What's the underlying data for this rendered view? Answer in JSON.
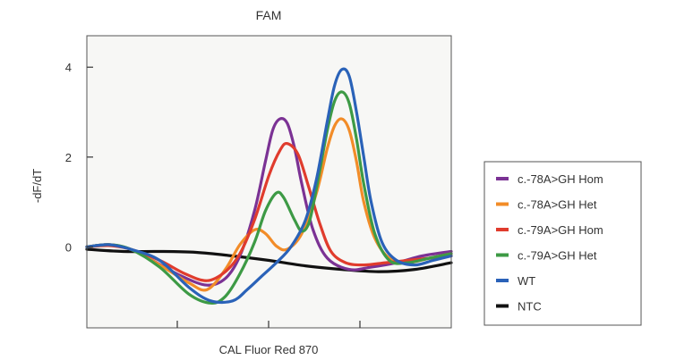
{
  "chart_data": {
    "type": "line",
    "title": "FAM",
    "xlabel": "CAL Fluor Red 870",
    "ylabel": "-dF/dT",
    "xlim": [
      0,
      100
    ],
    "ylim": [
      -1.8,
      4.7
    ],
    "y_ticks": [
      0,
      2,
      4
    ],
    "y_tick_labels": [
      "0",
      "2",
      "4"
    ],
    "grid": false,
    "legend_position": "right",
    "series": [
      {
        "name": "c.-78A>GH Hom",
        "color": "#7b3294",
        "points": [
          [
            0,
            0
          ],
          [
            6,
            0.05
          ],
          [
            12,
            -0.05
          ],
          [
            18,
            -0.3
          ],
          [
            26,
            -0.65
          ],
          [
            33,
            -0.85
          ],
          [
            38,
            -0.7
          ],
          [
            42,
            -0.2
          ],
          [
            46,
            0.8
          ],
          [
            49,
            1.9
          ],
          [
            51,
            2.6
          ],
          [
            53,
            2.85
          ],
          [
            55,
            2.75
          ],
          [
            57,
            2.2
          ],
          [
            59,
            1.4
          ],
          [
            62,
            0.4
          ],
          [
            66,
            -0.25
          ],
          [
            72,
            -0.5
          ],
          [
            78,
            -0.45
          ],
          [
            85,
            -0.35
          ],
          [
            92,
            -0.2
          ],
          [
            100,
            -0.1
          ]
        ]
      },
      {
        "name": "c.-78A>GH Het",
        "color": "#f28c28",
        "points": [
          [
            0,
            0
          ],
          [
            6,
            0.05
          ],
          [
            12,
            -0.05
          ],
          [
            20,
            -0.4
          ],
          [
            28,
            -0.8
          ],
          [
            33,
            -0.95
          ],
          [
            38,
            -0.5
          ],
          [
            42,
            0.05
          ],
          [
            46,
            0.38
          ],
          [
            49,
            0.3
          ],
          [
            52,
            0.02
          ],
          [
            55,
            -0.05
          ],
          [
            59,
            0.3
          ],
          [
            63,
            1.2
          ],
          [
            66,
            2.2
          ],
          [
            68,
            2.7
          ],
          [
            70,
            2.85
          ],
          [
            72,
            2.6
          ],
          [
            74,
            1.9
          ],
          [
            76,
            1.0
          ],
          [
            79,
            0.2
          ],
          [
            83,
            -0.25
          ],
          [
            88,
            -0.35
          ],
          [
            94,
            -0.25
          ],
          [
            100,
            -0.15
          ]
        ]
      },
      {
        "name": "c.-79A>GH Hom",
        "color": "#e03c2d",
        "points": [
          [
            0,
            0
          ],
          [
            6,
            0.03
          ],
          [
            12,
            -0.05
          ],
          [
            20,
            -0.3
          ],
          [
            27,
            -0.6
          ],
          [
            33,
            -0.75
          ],
          [
            38,
            -0.55
          ],
          [
            42,
            -0.15
          ],
          [
            46,
            0.6
          ],
          [
            50,
            1.6
          ],
          [
            53,
            2.15
          ],
          [
            55,
            2.3
          ],
          [
            58,
            2.05
          ],
          [
            61,
            1.3
          ],
          [
            64,
            0.5
          ],
          [
            67,
            -0.1
          ],
          [
            71,
            -0.35
          ],
          [
            76,
            -0.4
          ],
          [
            82,
            -0.35
          ],
          [
            88,
            -0.3
          ],
          [
            94,
            -0.25
          ],
          [
            100,
            -0.2
          ]
        ]
      },
      {
        "name": "c.-79A>GH Het",
        "color": "#3d9a45",
        "points": [
          [
            0,
            0
          ],
          [
            6,
            0.05
          ],
          [
            12,
            -0.05
          ],
          [
            20,
            -0.45
          ],
          [
            28,
            -1.05
          ],
          [
            34,
            -1.25
          ],
          [
            38,
            -1.1
          ],
          [
            42,
            -0.6
          ],
          [
            46,
            0.1
          ],
          [
            49,
            0.8
          ],
          [
            52,
            1.2
          ],
          [
            54,
            1.1
          ],
          [
            57,
            0.6
          ],
          [
            59,
            0.35
          ],
          [
            61,
            0.55
          ],
          [
            63,
            1.3
          ],
          [
            66,
            2.6
          ],
          [
            68,
            3.25
          ],
          [
            70,
            3.45
          ],
          [
            72,
            3.2
          ],
          [
            74,
            2.4
          ],
          [
            76,
            1.4
          ],
          [
            79,
            0.3
          ],
          [
            83,
            -0.3
          ],
          [
            88,
            -0.35
          ],
          [
            94,
            -0.25
          ],
          [
            100,
            -0.15
          ]
        ]
      },
      {
        "name": "WT",
        "color": "#2a62b8",
        "points": [
          [
            0,
            0
          ],
          [
            6,
            0.05
          ],
          [
            12,
            -0.05
          ],
          [
            20,
            -0.3
          ],
          [
            28,
            -0.9
          ],
          [
            34,
            -1.2
          ],
          [
            40,
            -1.2
          ],
          [
            44,
            -0.95
          ],
          [
            48,
            -0.65
          ],
          [
            52,
            -0.35
          ],
          [
            56,
            0.0
          ],
          [
            60,
            0.6
          ],
          [
            63,
            1.5
          ],
          [
            66,
            2.8
          ],
          [
            68,
            3.6
          ],
          [
            70,
            3.95
          ],
          [
            72,
            3.8
          ],
          [
            74,
            3.0
          ],
          [
            76,
            2.0
          ],
          [
            78,
            1.0
          ],
          [
            81,
            0.1
          ],
          [
            85,
            -0.3
          ],
          [
            90,
            -0.4
          ],
          [
            95,
            -0.3
          ],
          [
            100,
            -0.2
          ]
        ]
      },
      {
        "name": "NTC",
        "color": "#111111",
        "points": [
          [
            0,
            -0.05
          ],
          [
            10,
            -0.1
          ],
          [
            20,
            -0.1
          ],
          [
            30,
            -0.12
          ],
          [
            40,
            -0.2
          ],
          [
            50,
            -0.3
          ],
          [
            60,
            -0.42
          ],
          [
            70,
            -0.5
          ],
          [
            80,
            -0.55
          ],
          [
            90,
            -0.5
          ],
          [
            100,
            -0.35
          ]
        ]
      }
    ]
  }
}
